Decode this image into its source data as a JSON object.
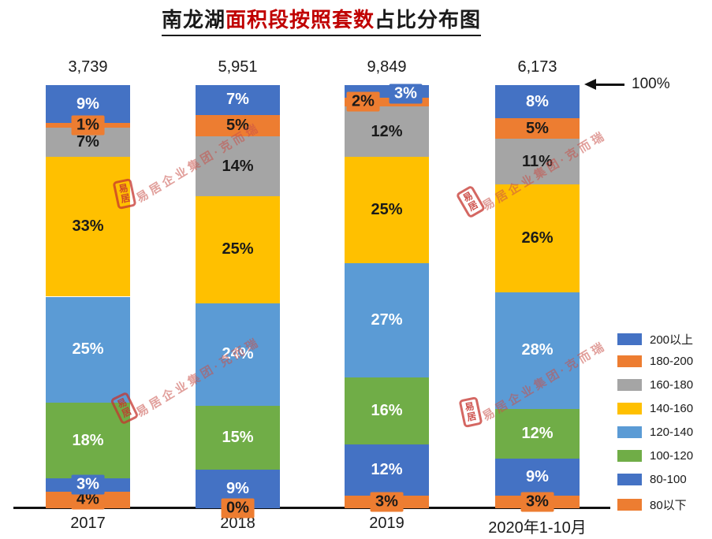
{
  "title": {
    "prefix": "南龙湖",
    "highlight": "面积段按照套数",
    "suffix": "占比分布图",
    "highlight_color": "#C00000"
  },
  "annotation": {
    "arrow_label": "100%"
  },
  "watermark": {
    "seal_text": "易居",
    "text": "易居企业集团·克而瑞",
    "color": "#C8504A"
  },
  "chart_data": {
    "type": "bar",
    "stacked": true,
    "percent_stacked": true,
    "title": "南龙湖面积段按照套数占比分布图",
    "categories": [
      "2017",
      "2018",
      "2019",
      "2020年1-10月"
    ],
    "totals": [
      "3,739",
      "5,951",
      "9,849",
      "6,173"
    ],
    "value_suffix": "%",
    "ylim": [
      0,
      100
    ],
    "grid": false,
    "legend_position": "right",
    "series_bottom_to_top": [
      {
        "name": "80以下",
        "color": "#ED7D31",
        "label_color": "#1a1a1a",
        "values": [
          4,
          0,
          3,
          3
        ]
      },
      {
        "name": "80-100",
        "color": "#4472C4",
        "label_color": "#ffffff",
        "values": [
          3,
          9,
          12,
          9
        ]
      },
      {
        "name": "100-120",
        "color": "#70AD47",
        "label_color": "#ffffff",
        "values": [
          18,
          15,
          16,
          12
        ]
      },
      {
        "name": "120-140",
        "color": "#5B9BD5",
        "label_color": "#ffffff",
        "values": [
          25,
          24,
          27,
          28
        ]
      },
      {
        "name": "140-160",
        "color": "#FFC000",
        "label_color": "#1a1a1a",
        "values": [
          33,
          25,
          25,
          26
        ]
      },
      {
        "name": "160-180",
        "color": "#A5A5A5",
        "label_color": "#1a1a1a",
        "values": [
          7,
          14,
          12,
          11
        ]
      },
      {
        "name": "180-200",
        "color": "#ED7D31",
        "label_color": "#1a1a1a",
        "values": [
          1,
          5,
          2,
          5
        ]
      },
      {
        "name": "200以上",
        "color": "#4472C4",
        "label_color": "#ffffff",
        "values": [
          9,
          7,
          3,
          8
        ]
      }
    ],
    "legend_top_to_bottom": [
      "200以上",
      "180-200",
      "160-180",
      "140-160",
      "120-140",
      "100-120",
      "80-100",
      "80以下"
    ],
    "label_offsets": {
      "180-200|2019": {
        "dx": -30,
        "dy": 0
      },
      "200以上|2019": {
        "dx": 24,
        "dy": 3
      }
    }
  }
}
